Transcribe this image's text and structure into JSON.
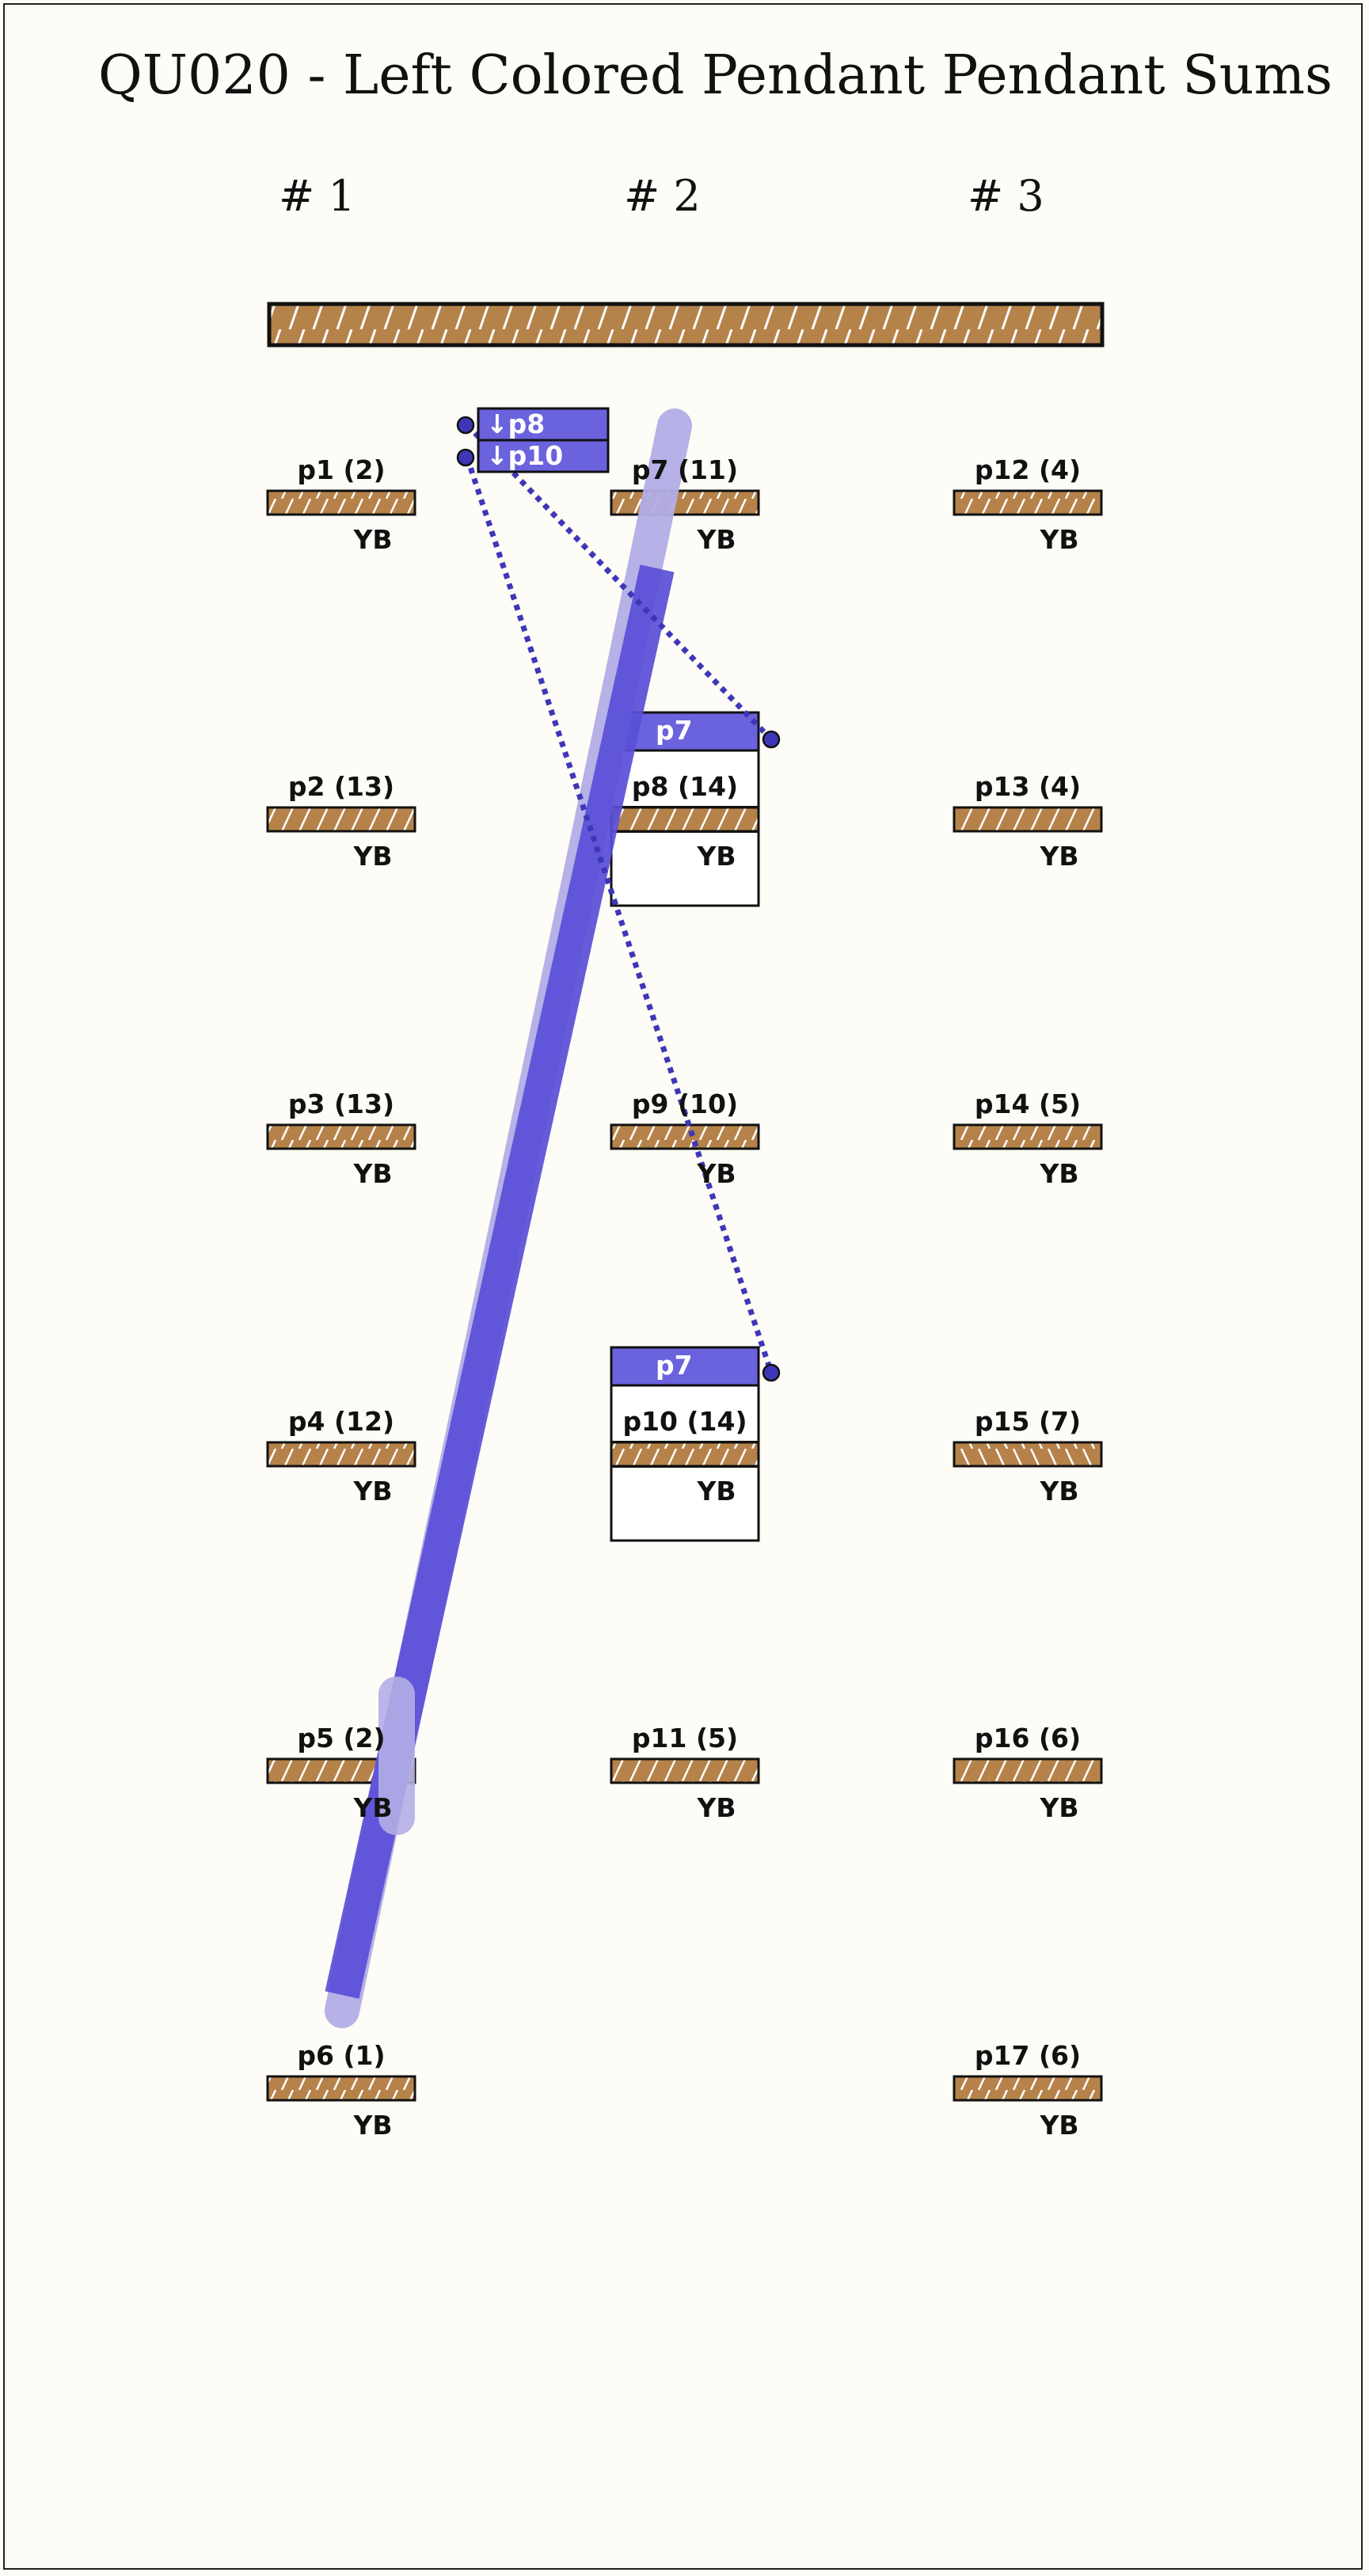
{
  "title": "QU020 - Left Colored Pendant Pendant Sums",
  "groups": [
    "# 1",
    "# 2",
    "# 3"
  ],
  "cords": [
    {
      "id": "p1",
      "label": "p1 (2)",
      "color": "YB",
      "col": 0,
      "row": 0
    },
    {
      "id": "p2",
      "label": "p2 (13)",
      "color": "YB",
      "col": 0,
      "row": 1
    },
    {
      "id": "p3",
      "label": "p3 (13)",
      "color": "YB",
      "col": 0,
      "row": 2
    },
    {
      "id": "p4",
      "label": "p4 (12)",
      "color": "YB",
      "col": 0,
      "row": 3
    },
    {
      "id": "p5",
      "label": "p5 (2)",
      "color": "YB",
      "col": 0,
      "row": 4
    },
    {
      "id": "p6",
      "label": "p6 (1)",
      "color": "YB",
      "col": 0,
      "row": 5
    },
    {
      "id": "p7",
      "label": "p7 (11)",
      "color": "YB",
      "col": 1,
      "row": 0
    },
    {
      "id": "p8",
      "label": "p8 (14)",
      "color": "YB",
      "col": 1,
      "row": 1,
      "boxed": true,
      "header": "p7"
    },
    {
      "id": "p9",
      "label": "p9 (10)",
      "color": "YB",
      "col": 1,
      "row": 2
    },
    {
      "id": "p10",
      "label": "p10 (14)",
      "color": "YB",
      "col": 1,
      "row": 3,
      "boxed": true,
      "header": "p7"
    },
    {
      "id": "p11",
      "label": "p11 (5)",
      "color": "YB",
      "col": 1,
      "row": 4
    },
    {
      "id": "p12",
      "label": "p12 (4)",
      "color": "YB",
      "col": 2,
      "row": 0
    },
    {
      "id": "p13",
      "label": "p13 (4)",
      "color": "YB",
      "col": 2,
      "row": 1
    },
    {
      "id": "p14",
      "label": "p14 (5)",
      "color": "YB",
      "col": 2,
      "row": 2
    },
    {
      "id": "p15",
      "label": "p15 (7)",
      "color": "YB",
      "col": 2,
      "row": 3,
      "hatch": "reverse"
    },
    {
      "id": "p16",
      "label": "p16 (6)",
      "color": "YB",
      "col": 2,
      "row": 4
    },
    {
      "id": "p17",
      "label": "p17 (6)",
      "color": "YB",
      "col": 2,
      "row": 5
    }
  ],
  "sum_tags": [
    "↓p8",
    "↓p10"
  ],
  "colors": {
    "cord_fill": "#b5834a",
    "accent": "#5a4fd8",
    "accent_light": "#b3aee6",
    "tag_fill": "#6b62dd",
    "dot": "#3d37b8",
    "background": "#fdfcf6"
  }
}
